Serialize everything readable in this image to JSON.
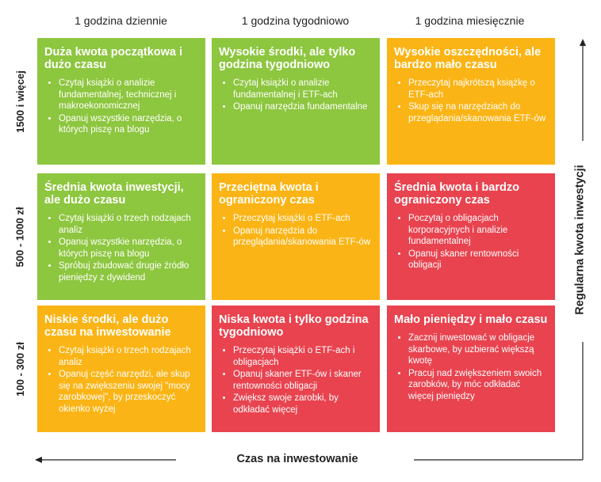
{
  "columns": [
    "1 godzina dziennie",
    "1 godzina tygodniowo",
    "1 godzina miesięcznie"
  ],
  "rows": [
    "1500 i więcej",
    "500 - 1000 zł",
    "100 - 300 zł"
  ],
  "x_axis_label": "Czas na inwestowanie",
  "y_axis_label": "Regularna kwota inwestycji",
  "cells": [
    [
      {
        "color": "#8dc63f",
        "title": "Duża kwota początkowa i dużo czasu",
        "items": [
          "Czytaj książki o analizie fundamentalnej, technicznej i makroekonomicznej",
          "Opanuj wszystkie narzędzia, o których piszę na blogu"
        ]
      },
      {
        "color": "#8dc63f",
        "title": "Wysokie środki, ale tylko godzina tygodniowo",
        "items": [
          "Czytaj książki o analizie fundamentalnej i ETF-ach",
          "Opanuj narzędzia fundamentalne"
        ]
      },
      {
        "color": "#fbb415",
        "title": "Wysokie oszczędności, ale bardzo mało czasu",
        "items": [
          "Przeczytaj najkrótszą książkę o ETF-ach",
          "Skup się na narzędziach do przeglądania/skanowania ETF-ów"
        ]
      }
    ],
    [
      {
        "color": "#8dc63f",
        "title": "Średnia kwota inwestycji, ale dużo czasu",
        "items": [
          "Czytaj książki o trzech rodzajach analiz",
          "Opanuj wszystkie narzędzia, o których piszę na blogu",
          "Spróbuj zbudować drugie źródło pieniędzy z dywidend"
        ]
      },
      {
        "color": "#fbb415",
        "title": "Przeciętna kwota i ograniczony czas",
        "items": [
          "Przeczytaj książki o ETF-ach",
          "Opanuj narzędzia do przeglądania/skanowania ETF-ów"
        ]
      },
      {
        "color": "#e8434f",
        "title": "Średnia kwota i bardzo ograniczony czas",
        "items": [
          "Poczytaj o obligacjach korporacyjnych i analizie fundamentalnej",
          "Opanuj skaner rentowności obligacji"
        ]
      }
    ],
    [
      {
        "color": "#fbb415",
        "title": "Niskie środki, ale dużo czasu na inwestowanie",
        "items": [
          "Czytaj książki o trzech rodzajach analiz",
          "Opanuj część narzędzi, ale skup się na zwiększeniu swojej \"mocy zarobkowej\", by przeskoczyć okienko wyżej"
        ]
      },
      {
        "color": "#e8434f",
        "title": "Niska kwota i tylko godzina tygodniowo",
        "items": [
          "Przeczytaj książki o ETF-ach i obligacjach",
          "Opanuj skaner ETF-ów i skaner rentowności obligacji",
          "Zwiększ swoje zarobki, by odkładać więcej"
        ]
      },
      {
        "color": "#e8434f",
        "title": "Mało pieniędzy i mało czasu",
        "items": [
          "Zacznij inwestować w obligacje skarbowe, by uzbierać większą kwotę",
          "Pracuj nad zwiększeniem swoich zarobków, by móc odkładać więcej pieniędzy"
        ]
      }
    ]
  ]
}
